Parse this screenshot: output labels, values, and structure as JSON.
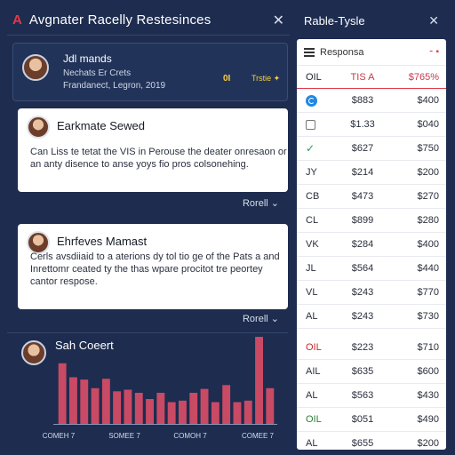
{
  "header": {
    "logo": "A",
    "title": "Avgnater Racelly Restesinces",
    "close": "✕"
  },
  "profile": {
    "name": "Jdl mands",
    "line1": "Nechats Er Crets",
    "line2": "Frandanect, Legron, 2019",
    "meta_a": "0I",
    "meta_b": "Trstie ✦"
  },
  "cards": [
    {
      "title": "Earkmate Sewed",
      "body": "Can Liss te tetat the VIS in Perouse the deater onresaon or an anty disence to anse yoys fio pros colsonehing.",
      "more": "Rorell ⌄"
    },
    {
      "title": "Ehrfeves Mamast",
      "body": "Cerls avsdiiaid to a aterions dy tol tio ge of the Pats a and Inrettomr ceated ty the thas wpare procitot tre peortey cantor respose.",
      "more": "Rorell ⌄"
    }
  ],
  "chart_panel": {
    "title": "Sah Coeert"
  },
  "chart_data": {
    "type": "bar",
    "values": [
      78,
      60,
      57,
      46,
      58,
      42,
      44,
      40,
      32,
      40,
      28,
      30,
      40,
      45,
      28,
      50,
      28,
      30,
      112,
      46
    ],
    "category_labels": [
      "COMEH 7",
      "SOMEE 7",
      "COMOH 7",
      "COMEE 7"
    ],
    "bar_color": "#c94a64"
  },
  "right_panel": {
    "title": "Rable-Tysle",
    "close": "✕",
    "toolbar_label": "Responsa",
    "toolbar_action": "⁃ ▪",
    "headers": [
      "OIL",
      "TIS A",
      "$765%"
    ],
    "rows": [
      {
        "c1": "",
        "icon": "c",
        "c2": "$883",
        "c3": "$400"
      },
      {
        "c1": "",
        "icon": "sq",
        "c2": "$1.33",
        "c3": "$040"
      },
      {
        "c1": "✓",
        "icon": "check",
        "c2": "$627",
        "c3": "$750"
      },
      {
        "c1": "JY",
        "c2": "$214",
        "c3": "$200"
      },
      {
        "c1": "CB",
        "c2": "$473",
        "c3": "$270"
      },
      {
        "c1": "CL",
        "c2": "$899",
        "c3": "$280"
      },
      {
        "c1": "VK",
        "c2": "$284",
        "c3": "$400"
      },
      {
        "c1": "JL",
        "c2": "$564",
        "c3": "$440"
      },
      {
        "c1": "VL",
        "c2": "$243",
        "c3": "$770"
      },
      {
        "c1": "AL",
        "c2": "$243",
        "c3": "$730"
      },
      {
        "c1": "OIL",
        "c1_color": "red",
        "c2": "$223",
        "c3": "$710"
      },
      {
        "c1": "AIL",
        "c2": "$635",
        "c3": "$600"
      },
      {
        "c1": "AL",
        "c2": "$563",
        "c3": "$430"
      },
      {
        "c1": "OIL",
        "c1_color": "green",
        "c2": "$051",
        "c3": "$490"
      },
      {
        "c1": "AL",
        "c2": "$655",
        "c3": "$200"
      }
    ]
  }
}
